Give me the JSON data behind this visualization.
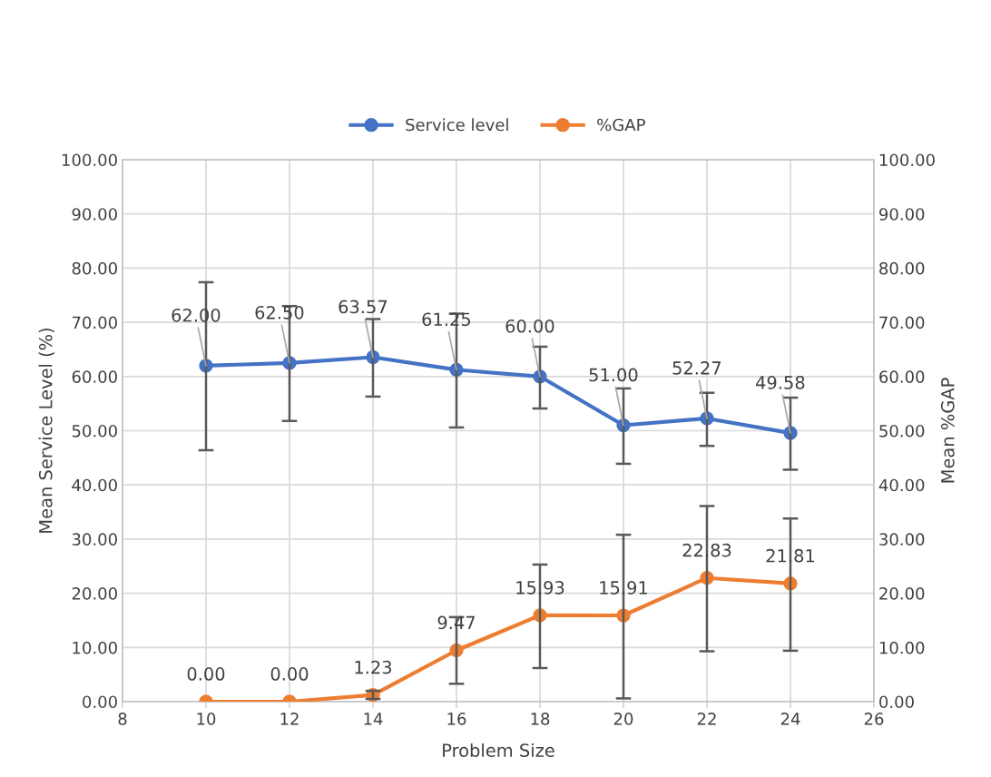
{
  "chart_data": {
    "type": "line",
    "xlabel": "Problem Size",
    "ylabel": "Mean Service Level (%)",
    "y2label": "Mean %GAP",
    "x": [
      10,
      12,
      14,
      16,
      18,
      20,
      22,
      24
    ],
    "series": [
      {
        "name": "Service level",
        "color": "#4472c4",
        "values": [
          62.0,
          62.5,
          63.57,
          61.25,
          60.0,
          51.0,
          52.27,
          49.58
        ],
        "value_labels": [
          "62.00",
          "62.50",
          "63.57",
          "61.25",
          "60.00",
          "51.00",
          "52.27",
          "49.58"
        ],
        "errors": [
          [
            46.4,
            77.4
          ],
          [
            51.8,
            73.0
          ],
          [
            56.3,
            70.6
          ],
          [
            50.6,
            71.6
          ],
          [
            54.1,
            65.5
          ],
          [
            43.9,
            57.8
          ],
          [
            47.2,
            57.0
          ],
          [
            42.8,
            56.1
          ]
        ]
      },
      {
        "name": "%GAP",
        "color": "#ed7d31",
        "axis": "y2",
        "values": [
          0.0,
          0.0,
          1.23,
          9.47,
          15.93,
          15.91,
          22.83,
          21.81
        ],
        "value_labels": [
          "0.00",
          "0.00",
          "1.23",
          "9.47",
          "15.93",
          "15.91",
          "22.83",
          "21.81"
        ],
        "errors": [
          null,
          null,
          [
            0.5,
            2.0
          ],
          [
            3.3,
            15.6
          ],
          [
            6.2,
            25.3
          ],
          [
            0.6,
            30.8
          ],
          [
            9.3,
            36.1
          ],
          [
            9.4,
            33.8
          ]
        ]
      }
    ],
    "xlim": [
      8,
      26
    ],
    "xticks": [
      8,
      10,
      12,
      14,
      16,
      18,
      20,
      22,
      24,
      26
    ],
    "ylim": [
      0,
      100
    ],
    "yticks": [
      {
        "value": 0,
        "label": "0.00"
      },
      {
        "value": 10,
        "label": "10.00"
      },
      {
        "value": 20,
        "label": "20.00"
      },
      {
        "value": 30,
        "label": "30.00"
      },
      {
        "value": 40,
        "label": "40.00"
      },
      {
        "value": 50,
        "label": "50.00"
      },
      {
        "value": 60,
        "label": "60.00"
      },
      {
        "value": 70,
        "label": "70.00"
      },
      {
        "value": 80,
        "label": "80.00"
      },
      {
        "value": 90,
        "label": "90.00"
      },
      {
        "value": 100,
        "label": "100.00"
      }
    ],
    "y2lim": [
      0,
      100
    ],
    "y2ticks": [
      {
        "value": 0,
        "label": "0.00"
      },
      {
        "value": 10,
        "label": "10.00"
      },
      {
        "value": 20,
        "label": "20.00"
      },
      {
        "value": 30,
        "label": "30.00"
      },
      {
        "value": 40,
        "label": "40.00"
      },
      {
        "value": 50,
        "label": "50.00"
      },
      {
        "value": 60,
        "label": "60.00"
      },
      {
        "value": 70,
        "label": "70.00"
      },
      {
        "value": 80,
        "label": "80.00"
      },
      {
        "value": 90,
        "label": "90.00"
      },
      {
        "value": 100,
        "label": "100.00"
      }
    ],
    "grid": true,
    "legend": "top",
    "marker": "circle",
    "line_style": "solid"
  }
}
